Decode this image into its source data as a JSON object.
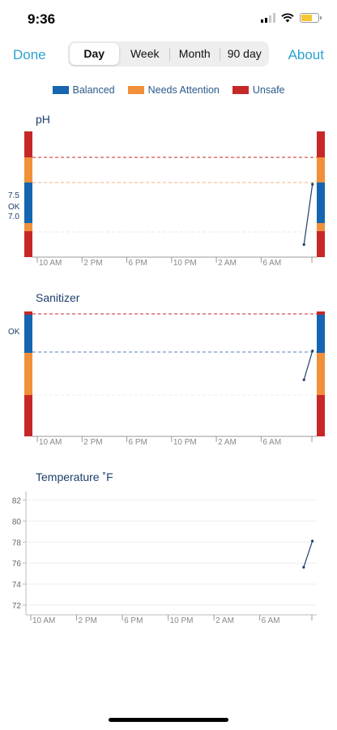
{
  "status": {
    "time": "9:36"
  },
  "nav": {
    "done": "Done",
    "about": "About",
    "segments": [
      "Day",
      "Week",
      "Month",
      "90 day"
    ],
    "selected": "Day"
  },
  "legend": [
    {
      "label": "Balanced",
      "color": "#1565b0"
    },
    {
      "label": "Needs Attention",
      "color": "#f0903a"
    },
    {
      "label": "Unsafe",
      "color": "#c62828"
    }
  ],
  "charts": {
    "ph": {
      "title": "pH",
      "axis_labels": [
        "7.5",
        "OK",
        "7.0"
      ],
      "x_ticks": [
        "10 AM",
        "2 PM",
        "6 PM",
        "10 PM",
        "2 AM",
        "6 AM"
      ],
      "series": [
        {
          "x": 0.955,
          "y": 0.1
        },
        {
          "x": 0.985,
          "y": 0.58
        }
      ]
    },
    "sanitizer": {
      "title": "Sanitizer",
      "axis_labels": [
        "OK"
      ],
      "x_ticks": [
        "10 AM",
        "2 PM",
        "6 PM",
        "10 PM",
        "2 AM",
        "6 AM"
      ],
      "series": [
        {
          "x": 0.955,
          "y": 0.45
        },
        {
          "x": 0.985,
          "y": 0.68
        }
      ]
    },
    "temperature": {
      "title": "Temperature ˚F",
      "y_ticks": [
        "82",
        "80",
        "78",
        "76",
        "74",
        "72"
      ],
      "x_ticks": [
        "10 AM",
        "2 PM",
        "6 PM",
        "10 PM",
        "2 AM",
        "6 AM"
      ],
      "series": [
        {
          "x": 0.955,
          "y": 75.6
        },
        {
          "x": 0.985,
          "y": 78.1
        }
      ]
    }
  }
}
